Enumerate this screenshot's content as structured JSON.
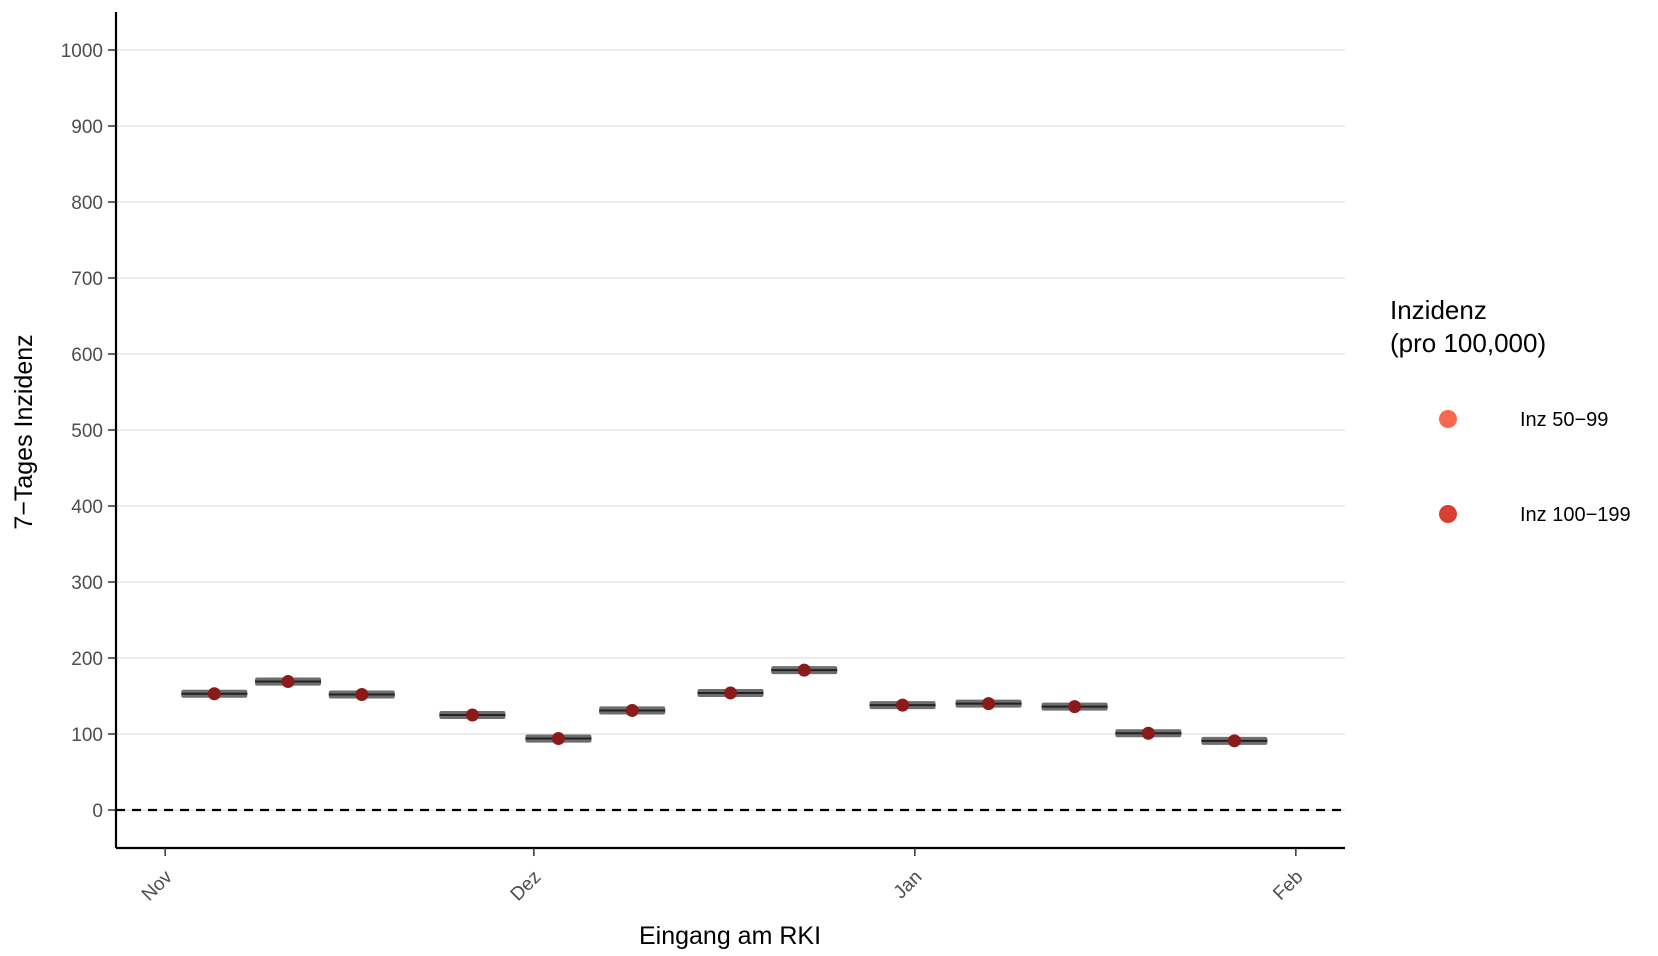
{
  "chart_data": {
    "type": "scatter",
    "xlabel": "Eingang am RKI",
    "ylabel": "7−Tages Inzidenz",
    "ylim": [
      -50,
      1050
    ],
    "y_ticks": [
      0,
      100,
      200,
      300,
      400,
      500,
      600,
      700,
      800,
      900,
      1000
    ],
    "x_range": [
      "2020-10-28",
      "2021-02-05"
    ],
    "x_ticks": [
      {
        "date": "2020-11-01",
        "label": "Nov"
      },
      {
        "date": "2020-12-01",
        "label": "Dez"
      },
      {
        "date": "2021-01-01",
        "label": "Jan"
      },
      {
        "date": "2021-02-01",
        "label": "Feb"
      }
    ],
    "reference_line": {
      "y": 0,
      "style": "dashed"
    },
    "grid": "horizontal",
    "legend": {
      "title": [
        "Inzidenz",
        "(pro 100,000)"
      ],
      "placement": "right",
      "entries": [
        {
          "label": "Inz 50−99",
          "color": "#f46a4e"
        },
        {
          "label": "Inz 100−199",
          "color": "#d73f30"
        }
      ]
    },
    "points": [
      {
        "x": "2020-11-05",
        "y": 153,
        "low": 151,
        "high": 155,
        "category": "Inz 100−199"
      },
      {
        "x": "2020-11-11",
        "y": 169,
        "low": 167,
        "high": 171,
        "category": "Inz 100−199"
      },
      {
        "x": "2020-11-17",
        "y": 152,
        "low": 150,
        "high": 154,
        "category": "Inz 100−199"
      },
      {
        "x": "2020-11-26",
        "y": 125,
        "low": 123,
        "high": 127,
        "category": "Inz 100−199"
      },
      {
        "x": "2020-12-03",
        "y": 94,
        "low": 92,
        "high": 96,
        "category": "Inz 50−99"
      },
      {
        "x": "2020-12-09",
        "y": 131,
        "low": 129,
        "high": 133,
        "category": "Inz 100−199"
      },
      {
        "x": "2020-12-17",
        "y": 154,
        "low": 152,
        "high": 156,
        "category": "Inz 100−199"
      },
      {
        "x": "2020-12-23",
        "y": 184,
        "low": 182,
        "high": 186,
        "category": "Inz 100−199"
      },
      {
        "x": "2020-12-31",
        "y": 138,
        "low": 136,
        "high": 140,
        "category": "Inz 100−199"
      },
      {
        "x": "2021-01-07",
        "y": 140,
        "low": 138,
        "high": 142,
        "category": "Inz 100−199"
      },
      {
        "x": "2021-01-14",
        "y": 136,
        "low": 134,
        "high": 138,
        "category": "Inz 100−199"
      },
      {
        "x": "2021-01-20",
        "y": 101,
        "low": 99,
        "high": 103,
        "category": "Inz 100−199"
      },
      {
        "x": "2021-01-27",
        "y": 91,
        "low": 89,
        "high": 93,
        "category": "Inz 50−99"
      }
    ],
    "colors": {
      "point": "#8b1a1a",
      "whisker": "#555555",
      "grid": "#ebebeb",
      "axis": "#000000"
    }
  }
}
